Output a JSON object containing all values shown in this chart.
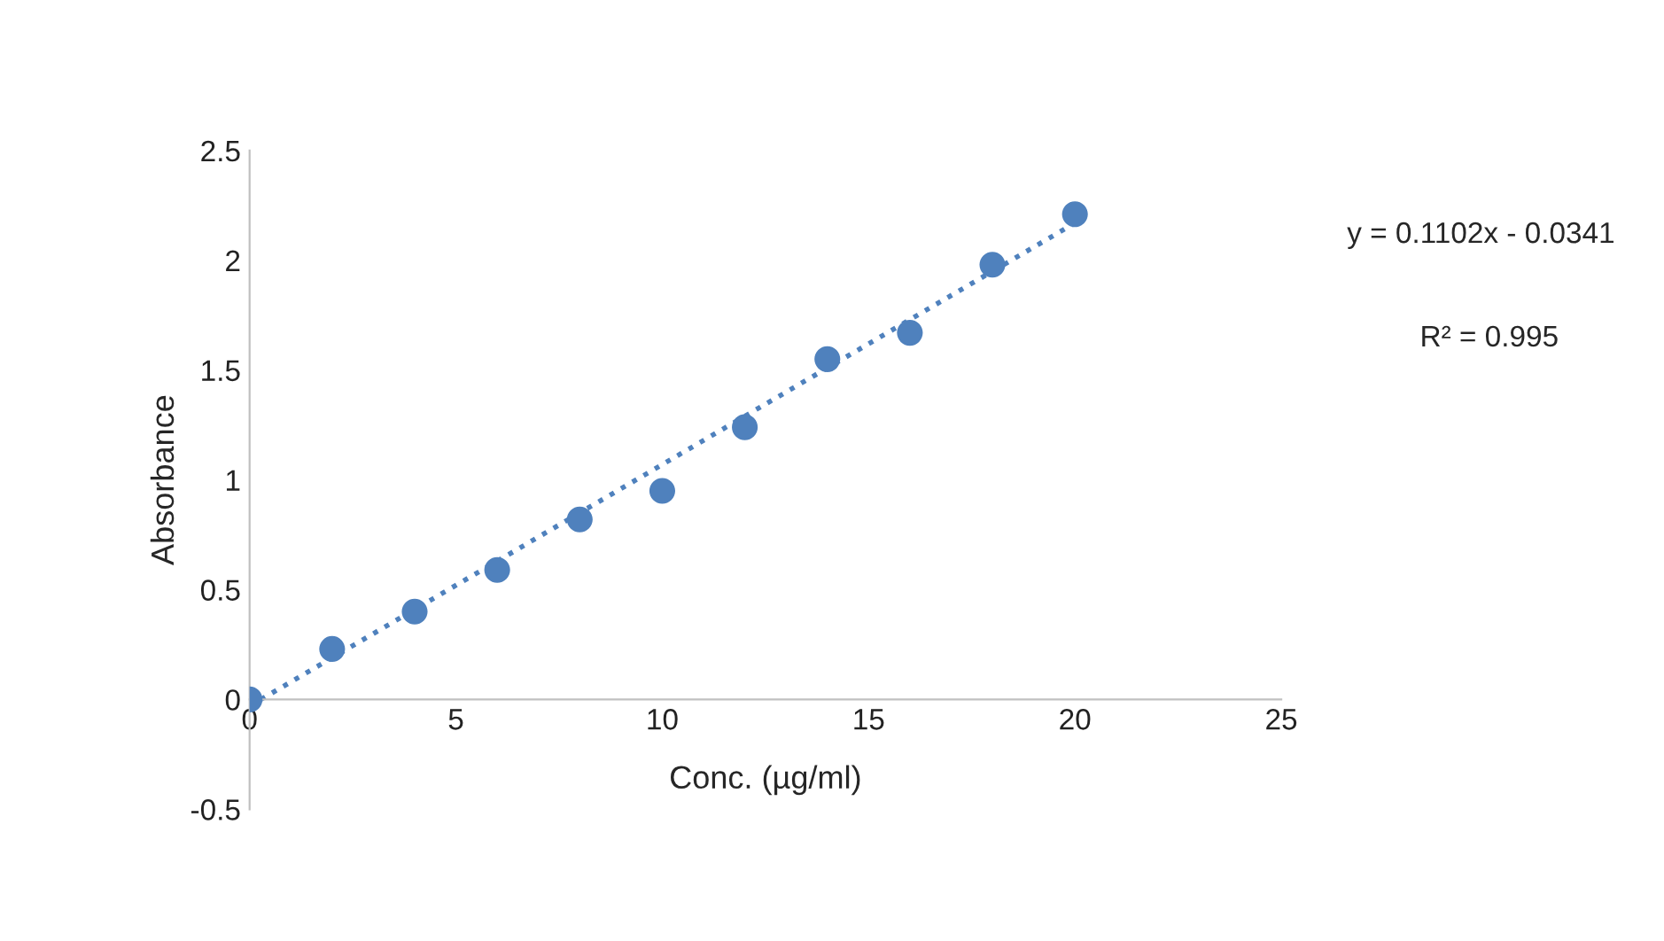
{
  "chart_data": {
    "type": "scatter",
    "xlabel": "Conc. (µg/ml)",
    "ylabel": "Absorbance",
    "annotations": [
      "y = 0.1102x - 0.0341",
      "R² = 0.995"
    ],
    "x": [
      0,
      2,
      4,
      6,
      8,
      10,
      12,
      14,
      16,
      18,
      20
    ],
    "series": [
      {
        "color": "#4f81bd",
        "marker": "circle",
        "values": [
          0,
          0.23,
          0.4,
          0.59,
          0.82,
          0.95,
          1.24,
          1.55,
          1.67,
          1.98,
          2.21
        ]
      },
      {
        "type": "line",
        "color": "#4f81bd",
        "line_style": "dotted",
        "marker": "none",
        "x": [
          0,
          20
        ],
        "values": [
          -0.03,
          2.17
        ]
      }
    ],
    "xlim": [
      0,
      25
    ],
    "xticks": [
      0,
      5,
      10,
      15,
      20,
      25
    ],
    "ylim": [
      -0.5,
      2.5
    ],
    "yticks": [
      -0.5,
      0,
      0.5,
      1,
      1.5,
      2,
      2.5
    ],
    "grid": false,
    "legend": false
  }
}
